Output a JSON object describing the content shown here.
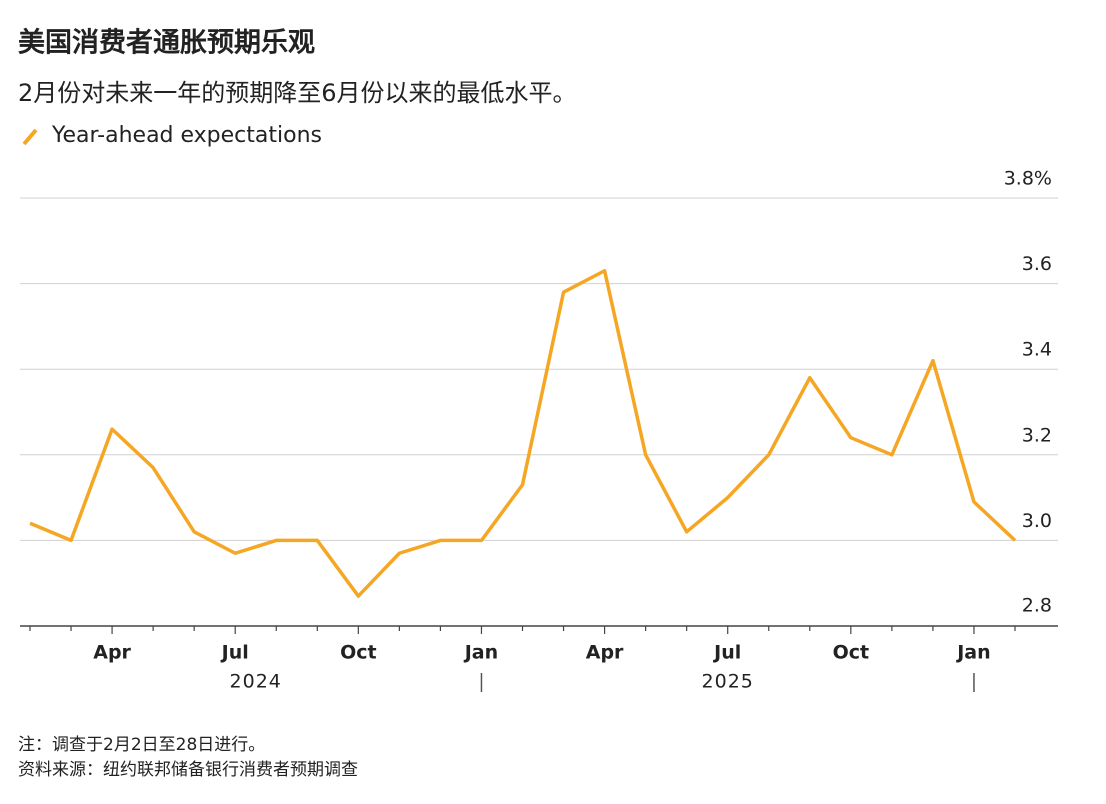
{
  "chart_data": {
    "type": "line",
    "title": "美国消费者通胀预期乐观",
    "subtitle": "2月份对未来一年的预期降至6月份以来的最低水平。",
    "categories": [
      null,
      null,
      "Apr",
      null,
      null,
      "Jul",
      null,
      null,
      "Oct",
      null,
      null,
      "Jan",
      null,
      null,
      "Apr",
      null,
      null,
      "Jul",
      null,
      null,
      "Oct",
      null,
      null,
      "Jan",
      null
    ],
    "year_labels": [
      "2024",
      "2025"
    ],
    "series": [
      {
        "name": "Year-ahead expectations",
        "color": "#f5a623",
        "values": [
          3.04,
          3.0,
          3.26,
          3.17,
          3.02,
          2.97,
          3.0,
          3.0,
          2.87,
          2.97,
          3.0,
          3.0,
          3.13,
          3.58,
          3.63,
          3.2,
          3.02,
          3.1,
          3.2,
          3.38,
          3.24,
          3.2,
          3.42,
          3.09,
          3.0
        ]
      }
    ],
    "ylim": [
      2.8,
      3.8
    ],
    "yticks": [
      2.8,
      {
        "value": 3,
        "label": "3.0"
      },
      3.2,
      3.4,
      3.6,
      {
        "value": 3.8,
        "label": "3.8%"
      }
    ],
    "grid": true,
    "notes": [
      "注：调查于2月2日至28日进行。",
      "资料来源：纽约联邦储备银行消费者预期调查"
    ]
  }
}
